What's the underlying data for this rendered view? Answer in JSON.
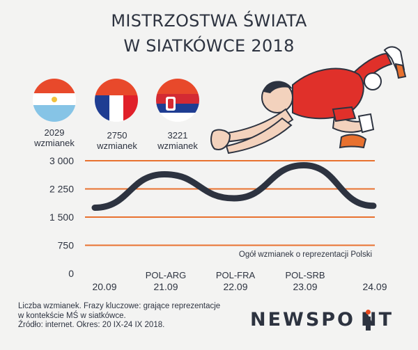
{
  "header": {
    "title_line1": "MISTRZOSTWA ŚWIATA",
    "title_line2": "W SIATKÓWCE 2018"
  },
  "flags": [
    {
      "country": "Argentina",
      "count_value": "2029",
      "count_unit": "wzmianek"
    },
    {
      "country": "France",
      "count_value": "2750",
      "count_unit": "wzmianek"
    },
    {
      "country": "Serbia",
      "count_value": "3221",
      "count_unit": "wzmianek"
    }
  ],
  "chart_data": {
    "type": "line",
    "categories": [
      "20.09",
      "21.09",
      "22.09",
      "23.09",
      "24.09"
    ],
    "match_labels": [
      "",
      "POL-ARG",
      "POL-FRA",
      "POL-SRB",
      ""
    ],
    "series": [
      {
        "name": "Ogół wzmianek o reprezentacji Polski",
        "values": [
          1750,
          2640,
          2000,
          2880,
          1800
        ],
        "color": "#2d3340"
      }
    ],
    "y_ticks": [
      0,
      750,
      1500,
      2250,
      3000
    ],
    "y_tick_labels": [
      "0",
      "750",
      "1 500",
      "2 250",
      "3 000"
    ],
    "ylim": [
      0,
      3000
    ],
    "grid_color": "#e8712f",
    "annotation": "Ogół wzmianek o reprezentacji Polski"
  },
  "footnote": {
    "line1": "Liczba wzmianek. Frazy kluczowe: grające reprezentacje",
    "line2": "w kontekście MŚ w siatkówce.",
    "line3": "Źródło: internet. Okres: 20 IX-24 IX 2018."
  },
  "logo": {
    "text": "NEWSPO  NT"
  },
  "colors": {
    "accent": "#e8712f",
    "text": "#2d3340",
    "background": "#f3f3f2"
  }
}
